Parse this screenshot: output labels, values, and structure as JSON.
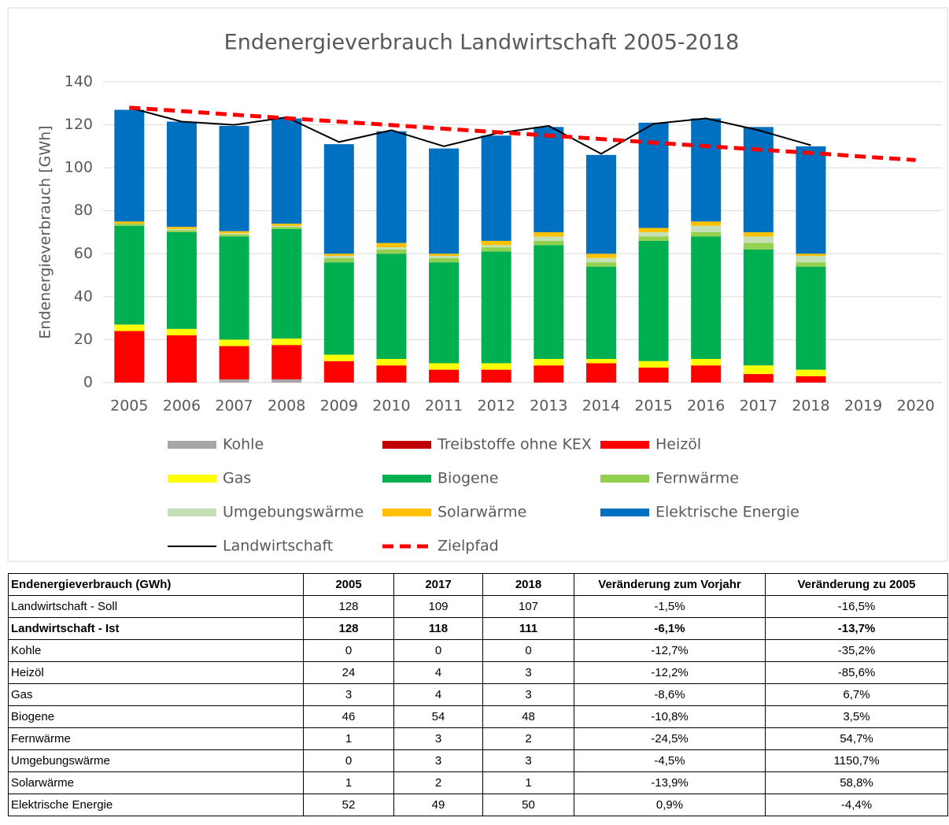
{
  "chart_data": {
    "type": "bar",
    "stacked": true,
    "title": "Endenergieverbrauch  Landwirtschaft 2005-2018",
    "ylabel": "Endenergieverbrauch [GWh]",
    "categories": [
      "2005",
      "2006",
      "2007",
      "2008",
      "2009",
      "2010",
      "2011",
      "2012",
      "2013",
      "2014",
      "2015",
      "2016",
      "2017",
      "2018",
      "2019",
      "2020"
    ],
    "ylim": [
      0,
      140
    ],
    "yticks": [
      0,
      20,
      40,
      60,
      80,
      100,
      120,
      140
    ],
    "grid": true,
    "series": [
      {
        "name": "Kohle",
        "color": "#a6a6a6",
        "values": [
          0,
          0,
          1.5,
          1.5,
          0,
          0,
          0,
          0,
          0,
          0,
          0,
          0,
          0,
          0,
          null,
          null
        ]
      },
      {
        "name": "Treibstoffe ohne KEX",
        "color": "#c00000",
        "values": [
          0,
          0,
          0,
          0,
          0,
          0,
          0,
          0,
          0,
          0,
          0,
          0,
          0,
          0,
          null,
          null
        ]
      },
      {
        "name": "Heizöl",
        "color": "#ff0000",
        "values": [
          24,
          22,
          15.5,
          16,
          10,
          8,
          6,
          6,
          8,
          9,
          7,
          8,
          4,
          3,
          null,
          null
        ]
      },
      {
        "name": "Gas",
        "color": "#ffff00",
        "values": [
          3,
          3,
          3,
          3,
          3,
          3,
          3,
          3,
          3,
          2,
          3,
          3,
          4,
          3,
          null,
          null
        ]
      },
      {
        "name": "Biogene",
        "color": "#00b050",
        "values": [
          46,
          45,
          48,
          51,
          43,
          49,
          47,
          52,
          53,
          43,
          56,
          57,
          54,
          48,
          null,
          null
        ]
      },
      {
        "name": "Fernwärme",
        "color": "#92d050",
        "values": [
          1,
          1,
          1,
          1,
          2,
          2,
          2,
          2,
          2,
          2,
          2,
          2,
          3,
          2,
          null,
          null
        ]
      },
      {
        "name": "Umgebungswärme",
        "color": "#c5e0b4",
        "values": [
          0,
          0.5,
          0.5,
          0.5,
          1,
          1,
          1,
          1,
          2,
          2,
          2,
          3,
          3,
          3,
          null,
          null
        ]
      },
      {
        "name": "Solarwärme",
        "color": "#ffc000",
        "values": [
          1,
          1,
          1,
          1,
          1,
          2,
          1,
          2,
          2,
          2,
          2,
          2,
          2,
          1,
          null,
          null
        ]
      },
      {
        "name": "Elektrische Energie",
        "color": "#0070c0",
        "values": [
          52,
          49,
          49,
          49,
          51,
          52,
          49,
          49,
          49,
          46,
          49,
          48,
          49,
          50,
          null,
          null
        ]
      }
    ],
    "lines": [
      {
        "name": "Landwirtschaft",
        "color": "#000000",
        "dashed": false,
        "values": [
          128,
          121.5,
          120,
          123.5,
          112,
          117.5,
          110,
          116,
          119.5,
          106.5,
          120.5,
          123,
          117.5,
          110.5,
          null,
          null
        ]
      },
      {
        "name": "Zielpfad",
        "color": "#ff0000",
        "dashed": true,
        "values": [
          128,
          126.4,
          124.7,
          123.1,
          121.5,
          119.9,
          118.2,
          116.6,
          115,
          113.4,
          111.7,
          110.1,
          108.5,
          106.9,
          105.2,
          103.6
        ]
      }
    ]
  },
  "table": {
    "header": [
      "Endenergieverbrauch (GWh)",
      "2005",
      "2017",
      "2018",
      "Veränderung zum Vorjahr",
      "Veränderung zu 2005"
    ],
    "rows": [
      [
        "Landwirtschaft - Soll",
        "128",
        "109",
        "107",
        "-1,5%",
        "-16,5%"
      ],
      [
        "Landwirtschaft - Ist",
        "128",
        "118",
        "111",
        "-6,1%",
        "-13,7%"
      ],
      [
        "Kohle",
        "0",
        "0",
        "0",
        "-12,7%",
        "-35,2%"
      ],
      [
        "Heizöl",
        "24",
        "4",
        "3",
        "-12,2%",
        "-85,6%"
      ],
      [
        "Gas",
        "3",
        "4",
        "3",
        "-8,6%",
        "6,7%"
      ],
      [
        "Biogene",
        "46",
        "54",
        "48",
        "-10,8%",
        "3,5%"
      ],
      [
        "Fernwärme",
        "1",
        "3",
        "2",
        "-24,5%",
        "54,7%"
      ],
      [
        "Umgebungswärme",
        "0",
        "3",
        "3",
        "-4,5%",
        "1150,7%"
      ],
      [
        "Solarwärme",
        "1",
        "2",
        "1",
        "-13,9%",
        "58,8%"
      ],
      [
        "Elektrische Energie",
        "52",
        "49",
        "50",
        "0,9%",
        "-4,4%"
      ]
    ]
  }
}
